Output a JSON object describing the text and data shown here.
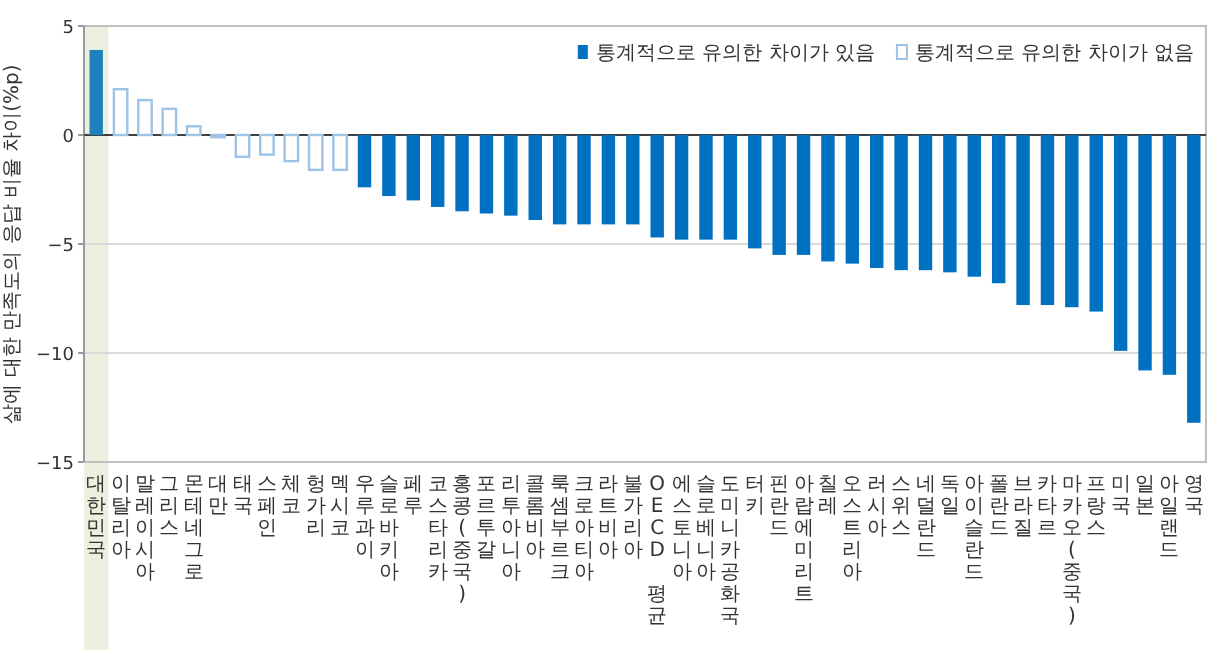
{
  "chart_data": {
    "type": "bar",
    "ylabel": "삶에 대한 만족도의 응답 비율 차이(%p)",
    "categories": [
      "대한민국",
      "이탈리아",
      "말레이시아",
      "그리스",
      "몬테네그로",
      "대만",
      "태국",
      "스페인",
      "체코",
      "헝가리",
      "멕시코",
      "우루과이",
      "슬로바키아",
      "페루",
      "코스타리카",
      "홍콩(중국)",
      "포르투갈",
      "리투아니아",
      "콜롬비아",
      "룩셈부르크",
      "크로아티아",
      "라트비아",
      "불가리아",
      "OECD 평균",
      "에스토니아",
      "슬로베니아",
      "도미니카공화국",
      "터키",
      "핀란드",
      "아랍에미리트",
      "칠레",
      "오스트리아",
      "러시아",
      "스위스",
      "네덜란드",
      "독일",
      "아이슬란드",
      "폴란드",
      "브라질",
      "카타르",
      "마카오(중국)",
      "프랑스",
      "미국",
      "일본",
      "아일랜드",
      "영국"
    ],
    "series": [
      {
        "name": "통계적으로 유의한 차이가 있음",
        "color": "#0070c0",
        "colors": [
          "#1f80c0",
          null,
          null,
          null,
          null,
          null,
          null,
          null,
          null,
          null,
          null,
          "#0070c0",
          "#0070c0",
          "#0070c0",
          "#0070c0",
          "#0070c0",
          "#0070c0",
          "#0070c0",
          "#0070c0",
          "#0070c0",
          "#0070c0",
          "#0070c0",
          "#0070c0",
          "#0070c0",
          "#0070c0",
          "#0070c0",
          "#0070c0",
          "#0070c0",
          "#0070c0",
          "#0070c0",
          "#0070c0",
          "#0070c0",
          "#0070c0",
          "#0070c0",
          "#0070c0",
          "#0070c0",
          "#0070c0",
          "#0070c0",
          "#0070c0",
          "#0070c0",
          "#0070c0",
          "#0070c0",
          "#0070c0",
          "#0070c0",
          "#0070c0",
          "#0070c0"
        ],
        "values": [
          3.9,
          null,
          null,
          null,
          null,
          null,
          null,
          null,
          null,
          null,
          null,
          -2.4,
          -2.8,
          -3.0,
          -3.3,
          -3.5,
          -3.6,
          -3.7,
          -3.9,
          -4.1,
          -4.1,
          -4.1,
          -4.1,
          -4.7,
          -4.8,
          -4.8,
          -4.8,
          -5.2,
          -5.5,
          -5.5,
          -5.8,
          -5.9,
          -6.1,
          -6.2,
          -6.2,
          -6.3,
          -6.5,
          -6.8,
          -7.8,
          -7.8,
          -7.9,
          -8.1,
          -9.9,
          -10.8,
          -11.0,
          -13.2
        ]
      },
      {
        "name": "통계적으로 유의한 차이가 없음",
        "color": "#9dc3e6",
        "values": [
          null,
          2.1,
          1.6,
          1.2,
          0.4,
          -0.1,
          -1.0,
          -0.9,
          -1.2,
          -1.6,
          -1.6,
          null,
          null,
          null,
          null,
          null,
          null,
          null,
          null,
          null,
          null,
          null,
          null,
          null,
          null,
          null,
          null,
          null,
          null,
          null,
          null,
          null,
          null,
          null,
          null,
          null,
          null,
          null,
          null,
          null,
          null,
          null,
          null,
          null,
          null,
          null
        ]
      }
    ],
    "ylim": [
      -15,
      5
    ],
    "yticks": [
      -15,
      -10,
      -5,
      0,
      5
    ],
    "grid": "y",
    "legend": "top right",
    "bands": [
      {
        "axis": "x",
        "from": "대한민국",
        "to": "대한민국",
        "color": "#ebf1de"
      }
    ]
  }
}
